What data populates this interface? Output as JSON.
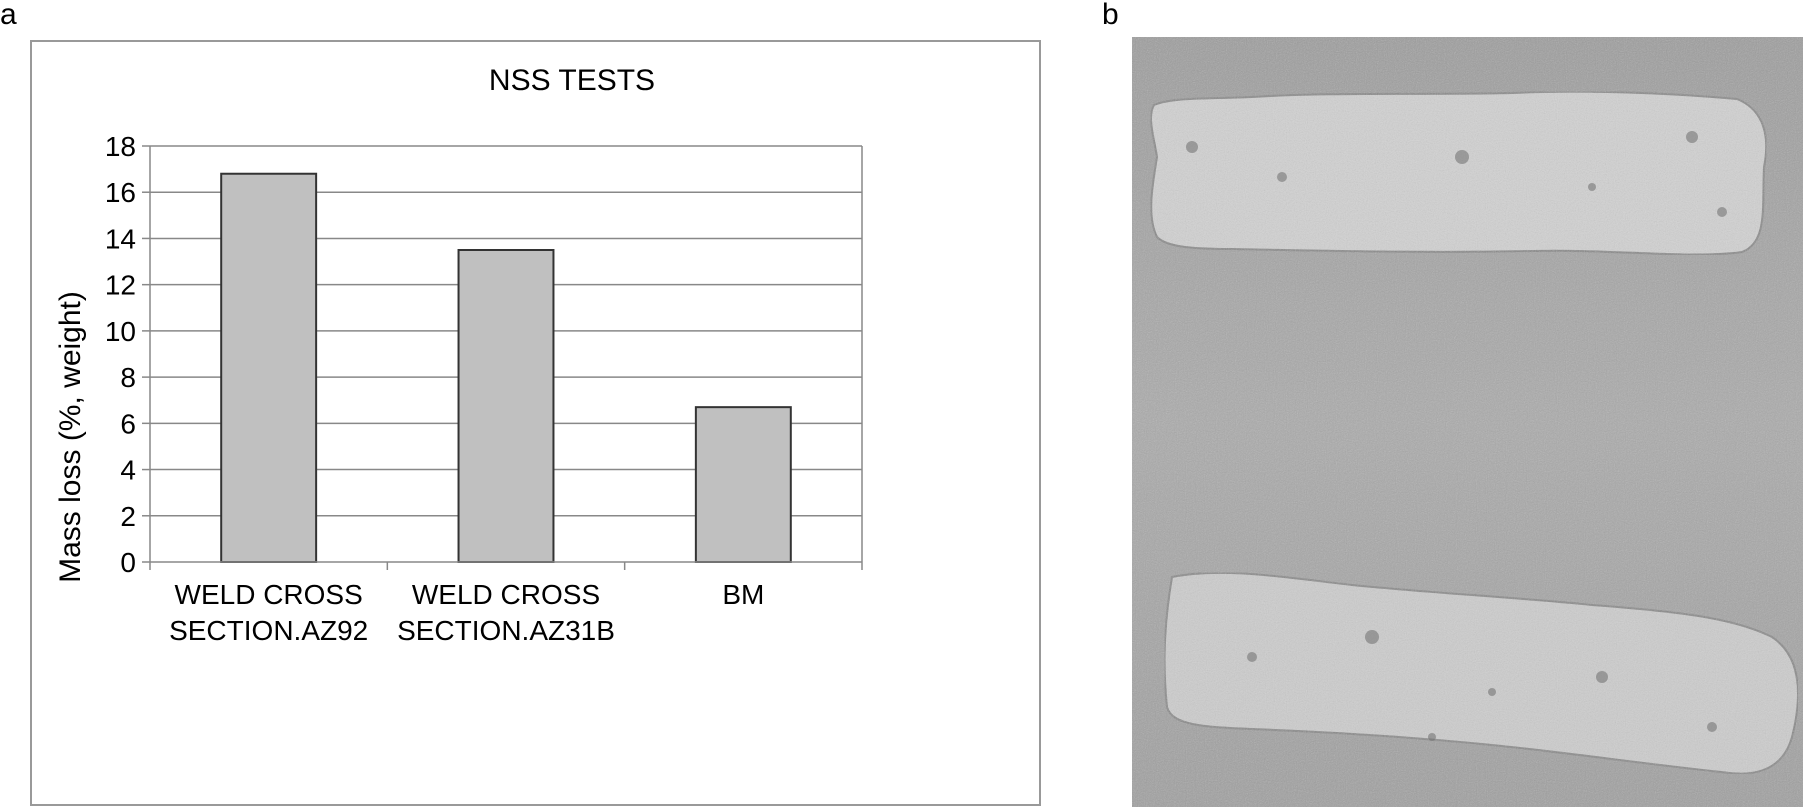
{
  "panel_labels": {
    "a": "a",
    "b": "b"
  },
  "chart_data": {
    "type": "bar",
    "title": "NSS TESTS",
    "xlabel": "",
    "ylabel": "Mass loss (%, weight)",
    "categories": [
      [
        "WELD CROSS",
        "SECTION.AZ92"
      ],
      [
        "WELD CROSS",
        "SECTION.AZ31B"
      ],
      [
        "BM"
      ]
    ],
    "values": [
      16.8,
      13.5,
      6.7
    ],
    "ylim": [
      0,
      18
    ],
    "yticks": [
      0,
      2,
      4,
      6,
      8,
      10,
      12,
      14,
      16,
      18
    ],
    "grid": true,
    "bar_color": "#c0c0c0",
    "bar_edge_color": "#333333",
    "grid_color": "#888888"
  },
  "photo": {
    "background_color": "#a4a4a4",
    "sample_color": "#cfcfcf"
  }
}
